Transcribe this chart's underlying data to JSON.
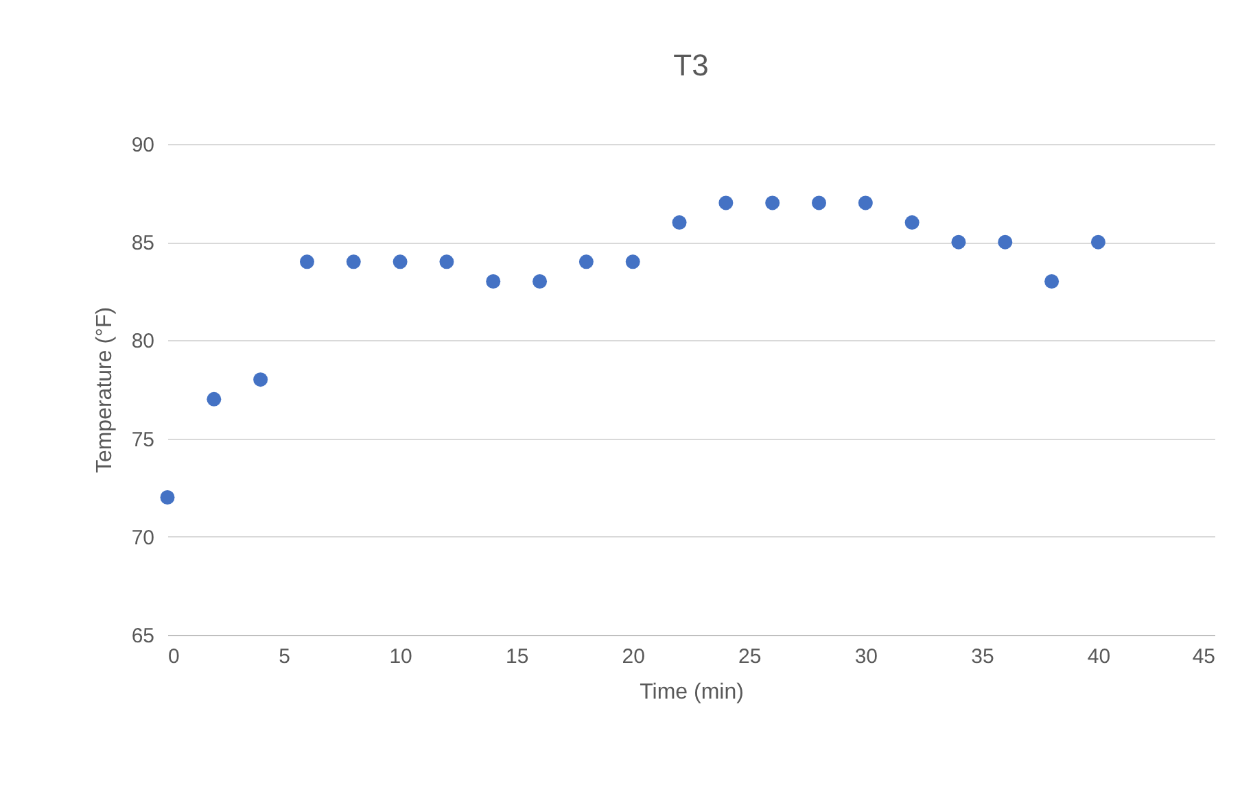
{
  "chart_data": {
    "type": "scatter",
    "title": "T3",
    "xlabel": "Time (min)",
    "ylabel": "Temperature (°F)",
    "x": [
      0,
      2,
      4,
      6,
      8,
      10,
      12,
      14,
      16,
      18,
      20,
      22,
      24,
      26,
      28,
      30,
      32,
      34,
      36,
      38,
      40
    ],
    "series": [
      {
        "color": "#4472c4",
        "values": [
          72,
          77,
          78,
          84,
          84,
          84,
          84,
          83,
          83,
          84,
          84,
          86,
          87,
          87,
          87,
          87,
          86,
          85,
          85,
          83,
          85
        ]
      }
    ],
    "xlim": [
      0,
      45
    ],
    "xticks": [
      0,
      5,
      10,
      15,
      20,
      25,
      30,
      35,
      40,
      45
    ],
    "ylim": [
      65,
      90
    ],
    "yticks": [
      65,
      70,
      75,
      80,
      85,
      90
    ],
    "grid": "y",
    "marker": "circle"
  }
}
